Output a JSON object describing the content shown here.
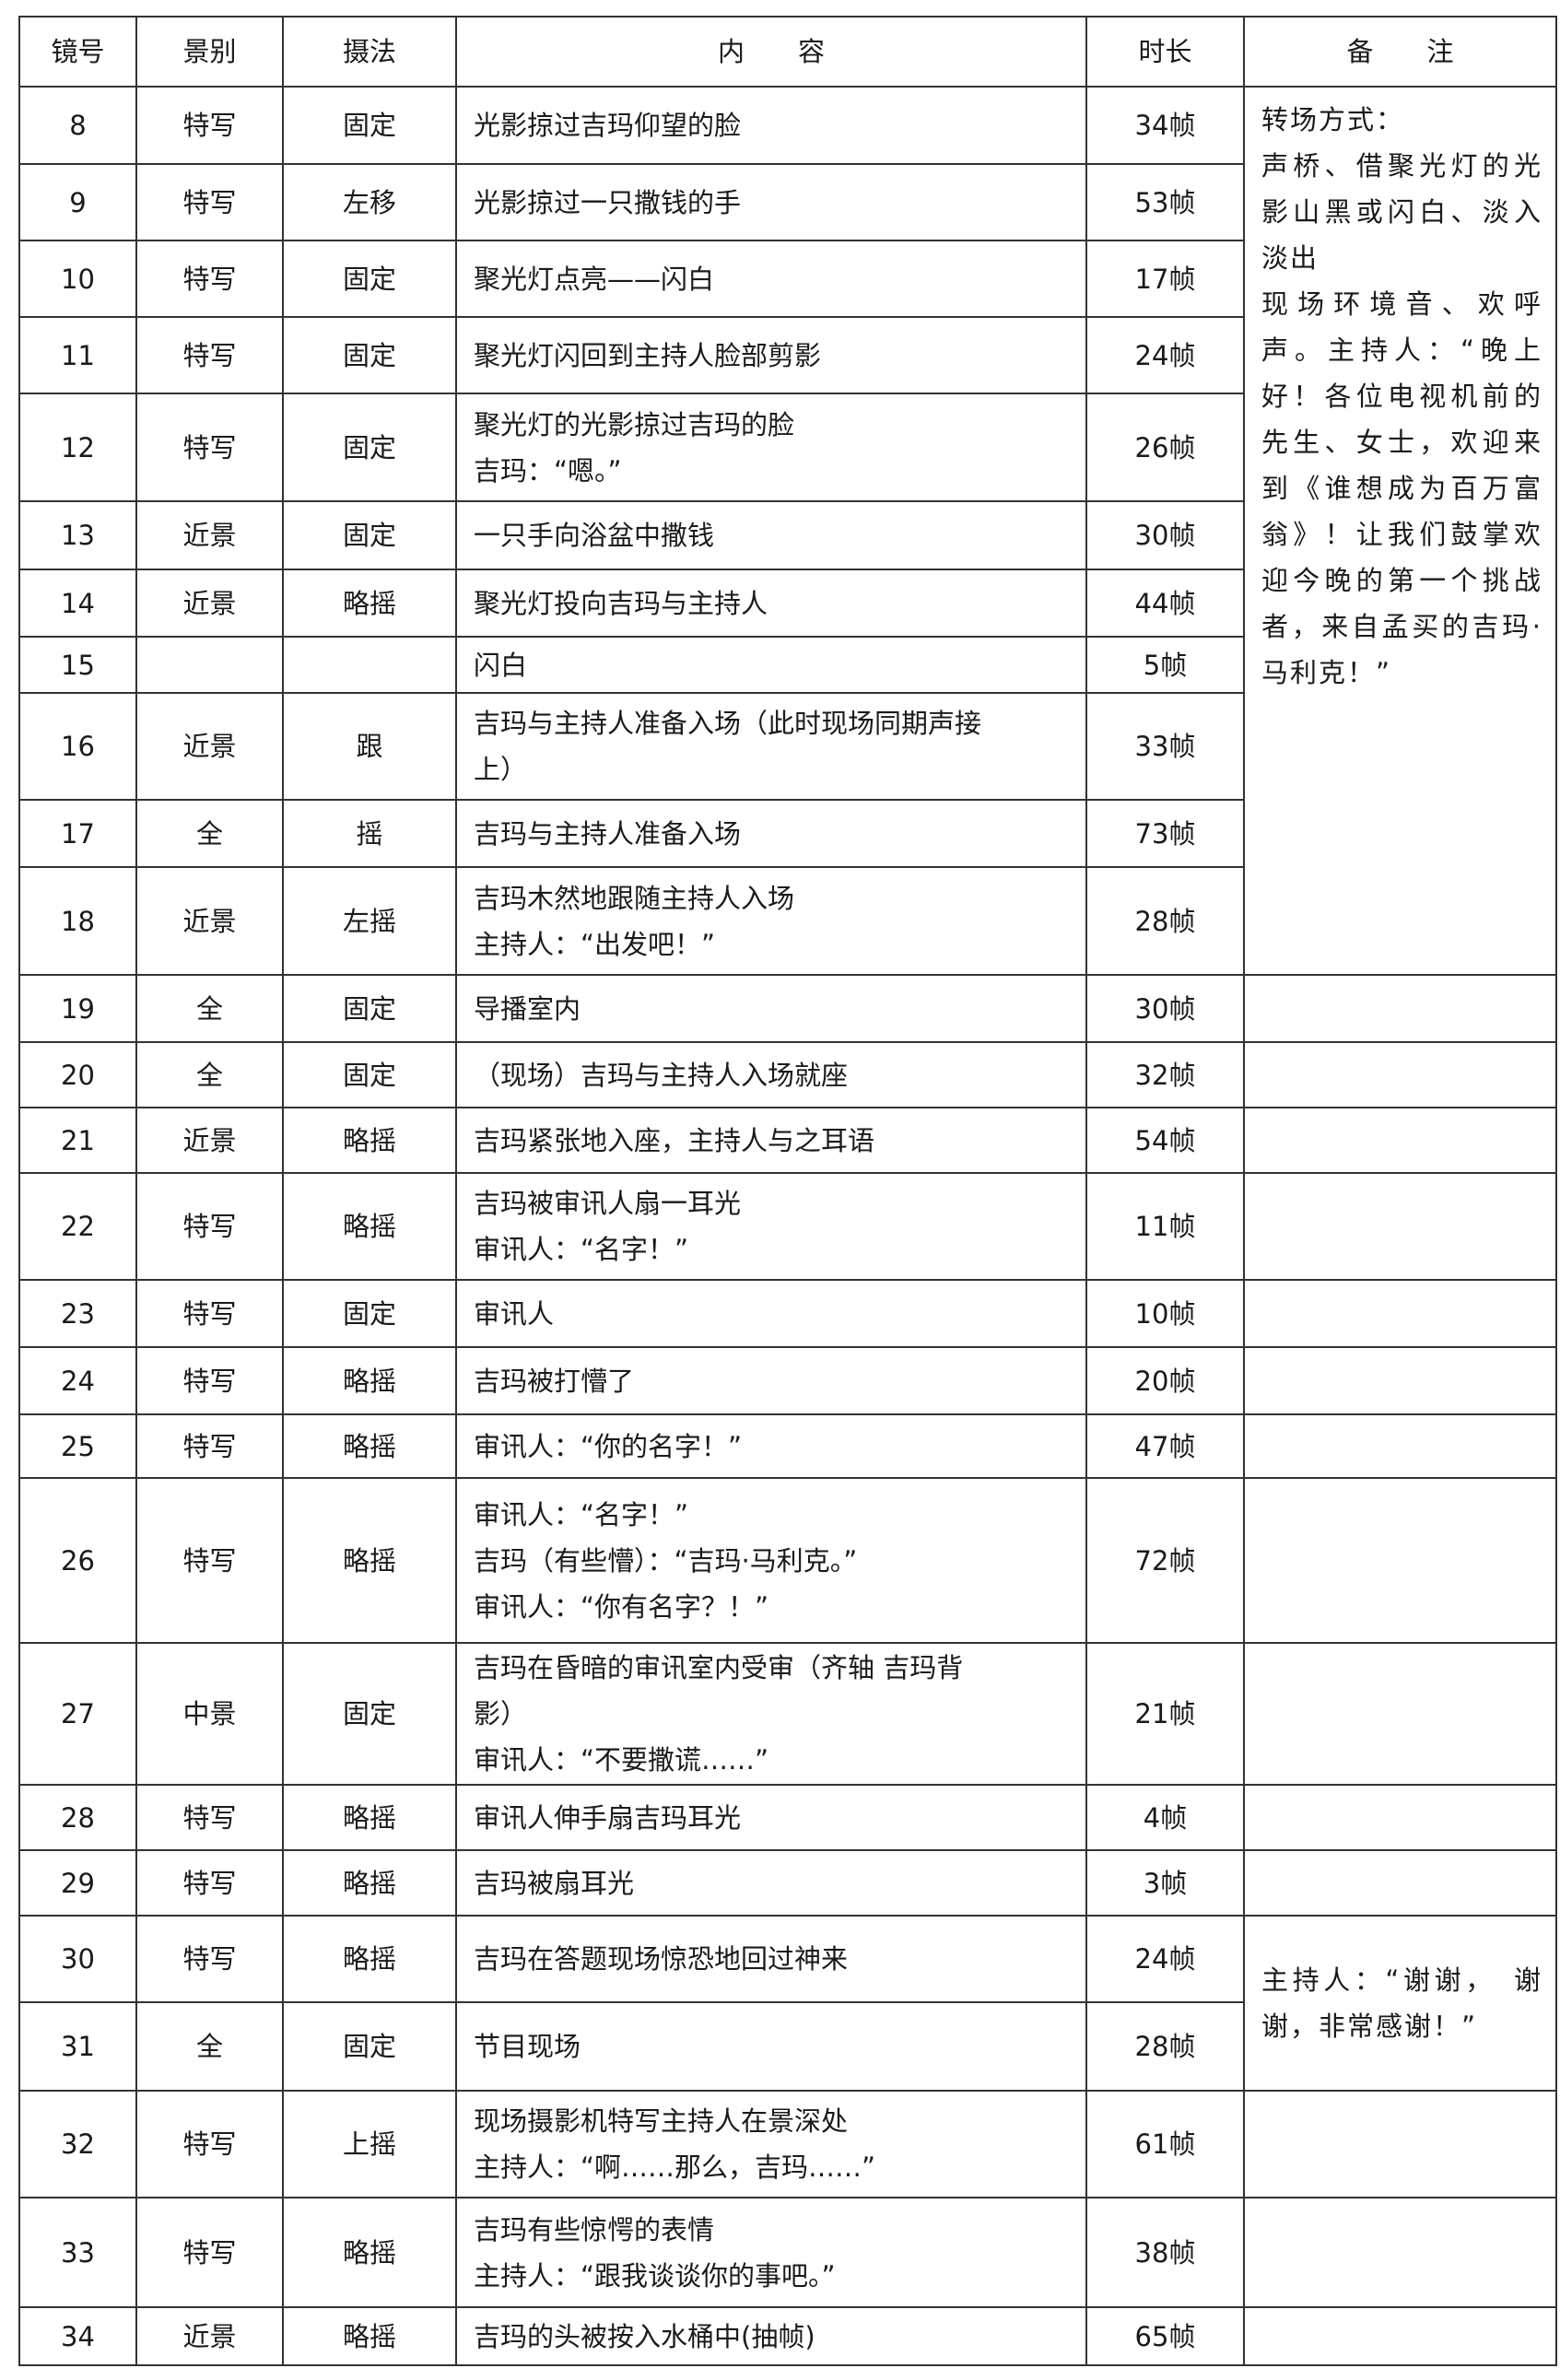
{
  "header": {
    "shot": "镜号",
    "scale": "景别",
    "move": "摄法",
    "content": "内　　容",
    "duration": "时长",
    "remark": "备　　注"
  },
  "rows": [
    {
      "shot": "8",
      "scale": "特写",
      "move": "固定",
      "content": [
        "光影掠过吉玛仰望的脸"
      ],
      "duration": "34帧"
    },
    {
      "shot": "9",
      "scale": "特写",
      "move": "左移",
      "content": [
        "光影掠过一只撒钱的手"
      ],
      "duration": "53帧"
    },
    {
      "shot": "10",
      "scale": "特写",
      "move": "固定",
      "content": [
        "聚光灯点亮——闪白"
      ],
      "duration": "17帧"
    },
    {
      "shot": "11",
      "scale": "特写",
      "move": "固定",
      "content": [
        "聚光灯闪回到主持人脸部剪影"
      ],
      "duration": "24帧"
    },
    {
      "shot": "12",
      "scale": "特写",
      "move": "固定",
      "content": [
        "聚光灯的光影掠过吉玛的脸",
        "吉玛：“嗯。”"
      ],
      "duration": "26帧"
    },
    {
      "shot": "13",
      "scale": "近景",
      "move": "固定",
      "content": [
        "一只手向浴盆中撒钱"
      ],
      "duration": "30帧"
    },
    {
      "shot": "14",
      "scale": "近景",
      "move": "略摇",
      "content": [
        "聚光灯投向吉玛与主持人"
      ],
      "duration": "44帧"
    },
    {
      "shot": "15",
      "scale": "",
      "move": "",
      "content": [
        "闪白"
      ],
      "duration": "5帧"
    },
    {
      "shot": "16",
      "scale": "近景",
      "move": "跟",
      "content": [
        "吉玛与主持人准备入场（此时现场同期声接",
        "上）"
      ],
      "duration": "33帧"
    },
    {
      "shot": "17",
      "scale": "全",
      "move": "摇",
      "content": [
        "吉玛与主持人准备入场"
      ],
      "duration": "73帧"
    },
    {
      "shot": "18",
      "scale": "近景",
      "move": "左摇",
      "content": [
        "吉玛木然地跟随主持人入场",
        "主持人：“出发吧！”"
      ],
      "duration": "28帧"
    },
    {
      "shot": "19",
      "scale": "全",
      "move": "固定",
      "content": [
        "导播室内"
      ],
      "duration": "30帧"
    },
    {
      "shot": "20",
      "scale": "全",
      "move": "固定",
      "content": [
        "（现场）吉玛与主持人入场就座"
      ],
      "duration": "32帧"
    },
    {
      "shot": "21",
      "scale": "近景",
      "move": "略摇",
      "content": [
        "吉玛紧张地入座，主持人与之耳语"
      ],
      "duration": "54帧"
    },
    {
      "shot": "22",
      "scale": "特写",
      "move": "略摇",
      "content": [
        "吉玛被审讯人扇一耳光",
        "审讯人：“名字！”"
      ],
      "duration": "11帧"
    },
    {
      "shot": "23",
      "scale": "特写",
      "move": "固定",
      "content": [
        "审讯人"
      ],
      "duration": "10帧"
    },
    {
      "shot": "24",
      "scale": "特写",
      "move": "略摇",
      "content": [
        "吉玛被打懵了"
      ],
      "duration": "20帧"
    },
    {
      "shot": "25",
      "scale": "特写",
      "move": "略摇",
      "content": [
        "审讯人：“你的名字！”"
      ],
      "duration": "47帧"
    },
    {
      "shot": "26",
      "scale": "特写",
      "move": "略摇",
      "content": [
        "审讯人：“名字！”",
        "吉玛（有些懵）：“吉玛·马利克。”",
        "审讯人：“你有名字？！”"
      ],
      "duration": "72帧"
    },
    {
      "shot": "27",
      "scale": "中景",
      "move": "固定",
      "content": [
        "吉玛在昏暗的审讯室内受审（齐轴 吉玛背",
        "影）",
        "审讯人：“不要撒谎……”"
      ],
      "duration": "21帧"
    },
    {
      "shot": "28",
      "scale": "特写",
      "move": "略摇",
      "content": [
        "审讯人伸手扇吉玛耳光"
      ],
      "duration": "4帧"
    },
    {
      "shot": "29",
      "scale": "特写",
      "move": "略摇",
      "content": [
        "吉玛被扇耳光"
      ],
      "duration": "3帧"
    },
    {
      "shot": "30",
      "scale": "特写",
      "move": "略摇",
      "content": [
        "吉玛在答题现场惊恐地回过神来"
      ],
      "duration": "24帧"
    },
    {
      "shot": "31",
      "scale": "全",
      "move": "固定",
      "content": [
        "节目现场"
      ],
      "duration": "28帧"
    },
    {
      "shot": "32",
      "scale": "特写",
      "move": "上摇",
      "content": [
        "现场摄影机特写主持人在景深处",
        "主持人：“啊……那么，吉玛……”"
      ],
      "duration": "61帧"
    },
    {
      "shot": "33",
      "scale": "特写",
      "move": "略摇",
      "content": [
        "吉玛有些惊愕的表情",
        "主持人：“跟我谈谈你的事吧。”"
      ],
      "duration": "38帧"
    },
    {
      "shot": "34",
      "scale": "近景",
      "move": "略摇",
      "content": [
        "吉玛的头被按入水桶中(抽帧)"
      ],
      "duration": "65帧"
    }
  ],
  "remarks": [
    {
      "from": "8",
      "to": "18",
      "text": "转场方式：\n声桥、借聚光灯的光影山黑或闪白、淡入淡出\n现场环境音、欢呼声。主持人：“晚上好！各位电视机前的先生、女士，欢迎来到《谁想成为百万富翁》！让我们鼓掌欢迎今晚的第一个挑战者，来自孟买的吉玛·马利克！”"
    },
    {
      "from": "30",
      "to": "31",
      "text": "主持人：“谢谢，　谢谢，非常感谢！”"
    }
  ]
}
